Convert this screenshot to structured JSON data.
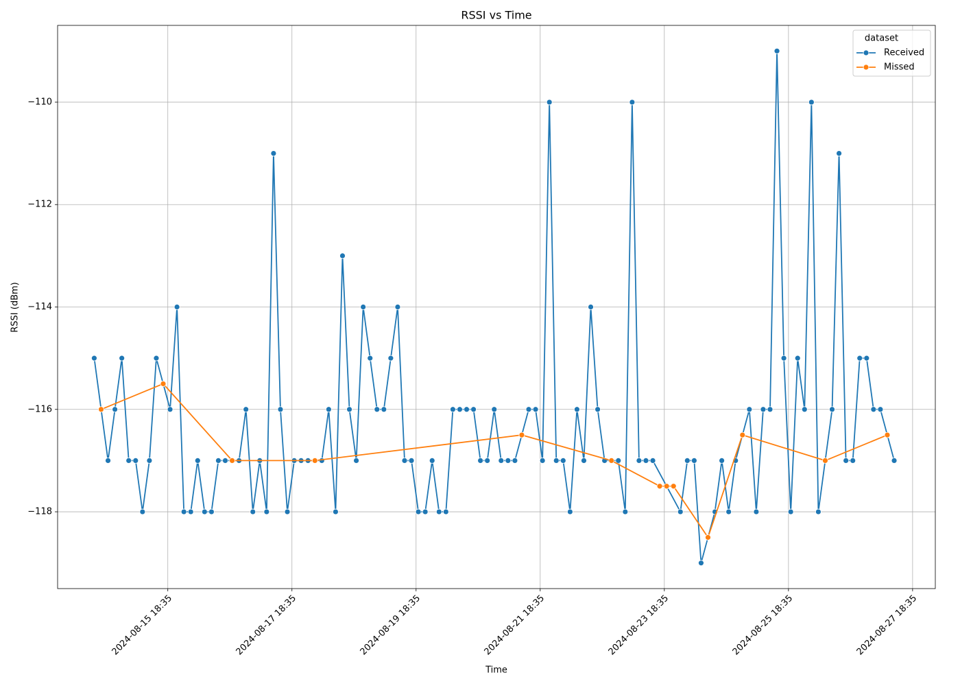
{
  "chart_data": {
    "type": "line",
    "title": "RSSI vs Time",
    "xlabel": "Time",
    "ylabel": "RSSI (dBm)",
    "legend_title": "dataset",
    "legend_loc": "upper right",
    "grid": true,
    "xlim": [
      "2024-08-13 23:58",
      "2024-08-28 03:22"
    ],
    "xticks": [
      "2024-08-15 18:35",
      "2024-08-17 18:35",
      "2024-08-19 18:35",
      "2024-08-21 18:35",
      "2024-08-23 18:35",
      "2024-08-25 18:35",
      "2024-08-27 18:35"
    ],
    "ylim": [
      -119.5,
      -108.5
    ],
    "yticks": [
      {
        "value": -118,
        "label": "−118"
      },
      {
        "value": -116,
        "label": "−116"
      },
      {
        "value": -114,
        "label": "−114"
      },
      {
        "value": -112,
        "label": "−112"
      },
      {
        "value": -110,
        "label": "−110"
      }
    ],
    "series": [
      {
        "name": "Received",
        "color": "#1f77b4",
        "x": [
          "2024-08-14 14:08",
          "2024-08-14 16:48",
          "2024-08-14 19:28",
          "2024-08-14 22:08",
          "2024-08-15 00:48",
          "2024-08-15 03:28",
          "2024-08-15 06:08",
          "2024-08-15 08:48",
          "2024-08-15 11:28",
          "2024-08-15 14:08",
          "2024-08-15 19:28",
          "2024-08-15 22:08",
          "2024-08-16 00:48",
          "2024-08-16 03:28",
          "2024-08-16 06:08",
          "2024-08-16 08:48",
          "2024-08-16 11:28",
          "2024-08-16 14:08",
          "2024-08-16 16:48",
          "2024-08-16 22:08",
          "2024-08-17 00:48",
          "2024-08-17 03:28",
          "2024-08-17 06:08",
          "2024-08-17 08:48",
          "2024-08-17 11:28",
          "2024-08-17 14:08",
          "2024-08-17 16:48",
          "2024-08-17 19:28",
          "2024-08-17 22:08",
          "2024-08-18 00:48",
          "2024-08-18 03:28",
          "2024-08-18 06:08",
          "2024-08-18 08:48",
          "2024-08-18 11:28",
          "2024-08-18 14:08",
          "2024-08-18 16:48",
          "2024-08-18 19:28",
          "2024-08-18 22:08",
          "2024-08-19 00:48",
          "2024-08-19 03:28",
          "2024-08-19 06:08",
          "2024-08-19 08:48",
          "2024-08-19 11:28",
          "2024-08-19 14:08",
          "2024-08-19 16:48",
          "2024-08-19 19:28",
          "2024-08-19 22:08",
          "2024-08-20 00:48",
          "2024-08-20 03:28",
          "2024-08-20 06:08",
          "2024-08-20 08:48",
          "2024-08-20 11:28",
          "2024-08-20 14:08",
          "2024-08-20 16:48",
          "2024-08-20 19:28",
          "2024-08-20 22:08",
          "2024-08-21 00:48",
          "2024-08-21 03:28",
          "2024-08-21 06:08",
          "2024-08-21 08:48",
          "2024-08-21 14:08",
          "2024-08-21 16:48",
          "2024-08-21 19:28",
          "2024-08-21 22:08",
          "2024-08-22 00:48",
          "2024-08-22 03:28",
          "2024-08-22 06:08",
          "2024-08-22 08:48",
          "2024-08-22 11:28",
          "2024-08-22 14:08",
          "2024-08-22 16:48",
          "2024-08-22 19:28",
          "2024-08-23 00:48",
          "2024-08-23 03:28",
          "2024-08-23 06:08",
          "2024-08-23 08:48",
          "2024-08-23 11:28",
          "2024-08-23 14:08",
          "2024-08-24 00:48",
          "2024-08-24 03:28",
          "2024-08-24 06:08",
          "2024-08-24 08:48",
          "2024-08-24 14:08",
          "2024-08-24 16:48",
          "2024-08-24 19:28",
          "2024-08-24 22:08",
          "2024-08-25 03:28",
          "2024-08-25 06:08",
          "2024-08-25 08:48",
          "2024-08-25 11:28",
          "2024-08-25 14:08",
          "2024-08-25 16:48",
          "2024-08-25 19:28",
          "2024-08-25 22:08",
          "2024-08-26 00:48",
          "2024-08-26 03:28",
          "2024-08-26 06:08",
          "2024-08-26 11:28",
          "2024-08-26 14:08",
          "2024-08-26 16:48",
          "2024-08-26 19:28",
          "2024-08-26 22:08",
          "2024-08-27 00:48",
          "2024-08-27 03:28",
          "2024-08-27 06:08",
          "2024-08-27 11:28"
        ],
        "values": [
          -115,
          -116,
          -117,
          -116,
          -115,
          -117,
          -117,
          -118,
          -117,
          -115,
          -116,
          -114,
          -118,
          -118,
          -117,
          -118,
          -118,
          -117,
          -117,
          -117,
          -116,
          -118,
          -117,
          -118,
          -111,
          -116,
          -118,
          -117,
          -117,
          -117,
          -117,
          -117,
          -116,
          -118,
          -113,
          -116,
          -117,
          -114,
          -115,
          -116,
          -116,
          -115,
          -114,
          -117,
          -117,
          -118,
          -118,
          -117,
          -118,
          -118,
          -116,
          -116,
          -116,
          -116,
          -117,
          -117,
          -116,
          -117,
          -117,
          -117,
          -116,
          -116,
          -117,
          -110,
          -117,
          -117,
          -118,
          -116,
          -117,
          -114,
          -116,
          -117,
          -117,
          -118,
          -110,
          -117,
          -117,
          -117,
          -118,
          -117,
          -117,
          -119,
          -118,
          -117,
          -118,
          -117,
          -116,
          -118,
          -116,
          -116,
          -109,
          -115,
          -118,
          -115,
          -116,
          -110,
          -118,
          -116,
          -111,
          -117,
          -117,
          -115,
          -115,
          -116,
          -116,
          -117
        ]
      },
      {
        "name": "Missed",
        "color": "#ff7f0e",
        "x": [
          "2024-08-14 16:48",
          "2024-08-15 16:48",
          "2024-08-16 19:28",
          "2024-08-18 03:28",
          "2024-08-21 11:28",
          "2024-08-22 22:08",
          "2024-08-23 16:48",
          "2024-08-23 19:28",
          "2024-08-23 22:08",
          "2024-08-24 11:28",
          "2024-08-25 00:48",
          "2024-08-26 08:48",
          "2024-08-27 08:48"
        ],
        "values": [
          -116,
          -115.5,
          -117,
          -117,
          -116.5,
          -117,
          -117.5,
          -117.5,
          -117.5,
          -118.5,
          -116.5,
          -117,
          -116.5
        ]
      }
    ]
  }
}
